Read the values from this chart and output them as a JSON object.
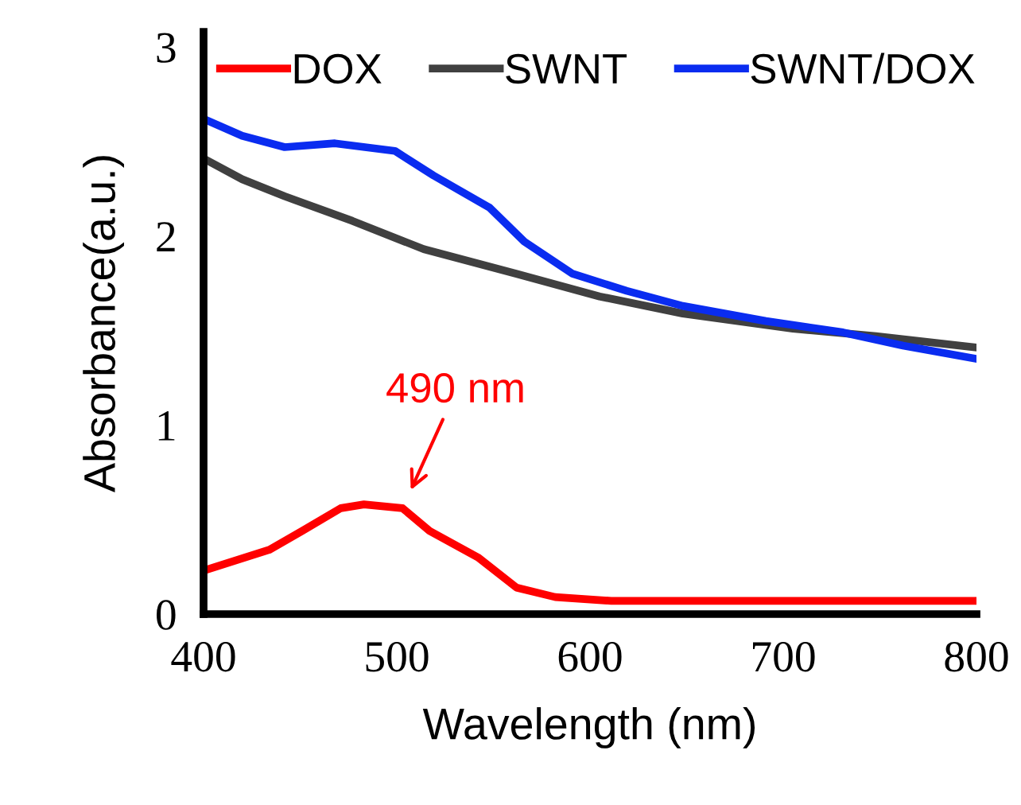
{
  "chart_data": {
    "type": "line",
    "xlabel": "Wavelength (nm)",
    "ylabel": "Absorbance(a.u.)",
    "xlim": [
      400,
      800
    ],
    "xticks": [
      400,
      500,
      600,
      700,
      800
    ],
    "ylim": [
      0,
      3.08
    ],
    "yticks": [
      0,
      1,
      2,
      3
    ],
    "grid": false,
    "legend": "top",
    "marker": "none",
    "line_style": "solid",
    "annotations": [
      {
        "text": "490 nm",
        "x": 503,
        "y": 0.56
      }
    ],
    "series": [
      {
        "name": "DOX",
        "color": "#ff0000",
        "x": [
          400,
          434,
          451,
          471,
          483,
          503,
          517,
          542,
          562,
          582,
          611,
          700,
          800
        ],
        "values": [
          0.23,
          0.34,
          0.44,
          0.56,
          0.58,
          0.56,
          0.44,
          0.3,
          0.14,
          0.09,
          0.07,
          0.07,
          0.07
        ]
      },
      {
        "name": "SWNT",
        "color": "#404040",
        "x": [
          400,
          420,
          442,
          477,
          514,
          562,
          605,
          648,
          705,
          748,
          800
        ],
        "values": [
          2.41,
          2.3,
          2.21,
          2.08,
          1.93,
          1.8,
          1.68,
          1.59,
          1.51,
          1.47,
          1.41
        ]
      },
      {
        "name": "SWNT/DOX",
        "color": "#0a2cf0",
        "x": [
          400,
          420,
          442,
          468,
          499,
          519,
          548,
          566,
          591,
          619,
          648,
          691,
          731,
          762,
          800
        ],
        "values": [
          2.62,
          2.53,
          2.47,
          2.49,
          2.45,
          2.32,
          2.15,
          1.97,
          1.8,
          1.71,
          1.63,
          1.55,
          1.49,
          1.42,
          1.35
        ]
      }
    ]
  }
}
